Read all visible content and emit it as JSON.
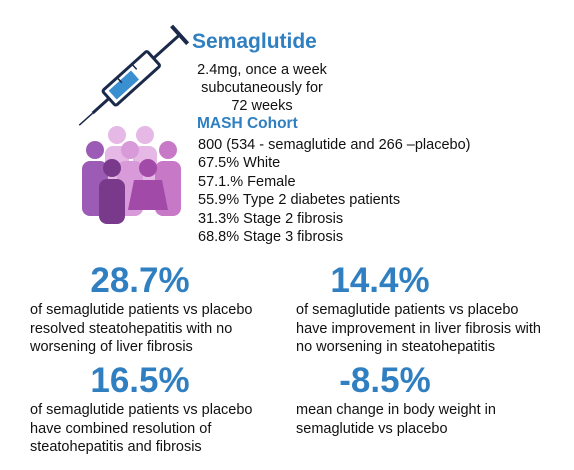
{
  "header": {
    "title": "Semaglutide",
    "dosing": [
      "2.4mg, once a week",
      "subcutaneously for",
      "72 weeks"
    ]
  },
  "cohort": {
    "title": "MASH Cohort",
    "items": [
      "800 (534 - semaglutide and 266 –placebo)",
      "67.5% White",
      "57.1.% Female",
      "55.9% Type 2 diabetes patients",
      "31.3% Stage 2 fibrosis",
      "68.8% Stage 3 fibrosis"
    ]
  },
  "stats": [
    {
      "value": "28.7%",
      "text": [
        "of semaglutide patients vs placebo",
        "resolved steatohepatitis with no",
        "worsening of liver fibrosis"
      ]
    },
    {
      "value": "14.4%",
      "text": [
        "of semaglutide patients vs placebo",
        "have improvement in liver fibrosis with",
        "no worsening in steatohepatitis"
      ]
    },
    {
      "value": "16.5%",
      "text": [
        "of semaglutide patients vs placebo",
        "have combined resolution of",
        "steatohepatitis and fibrosis"
      ]
    },
    {
      "value": "-8.5%",
      "text": [
        "mean change in body weight in",
        "semaglutide vs placebo"
      ]
    }
  ]
}
